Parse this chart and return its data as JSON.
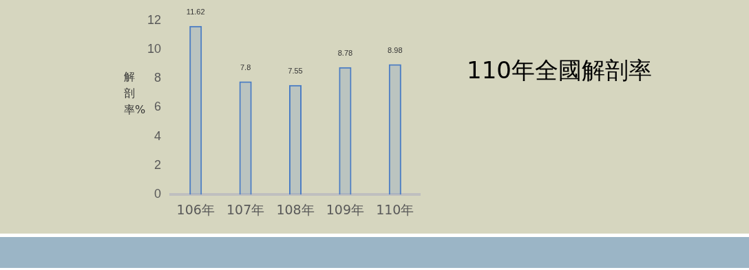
{
  "chart_data": {
    "type": "bar",
    "title": "110年全國解剖率",
    "ylabel": "解剖率%",
    "categories": [
      "106年",
      "107年",
      "108年",
      "109年",
      "110年"
    ],
    "values": [
      11.62,
      7.8,
      7.55,
      8.78,
      8.98
    ],
    "color": "#4a7cc4",
    "ylim": [
      0,
      12
    ],
    "yticks": [
      0,
      2,
      4,
      6,
      8,
      10,
      12
    ],
    "grid": false,
    "legend": false,
    "data_labels": true
  }
}
